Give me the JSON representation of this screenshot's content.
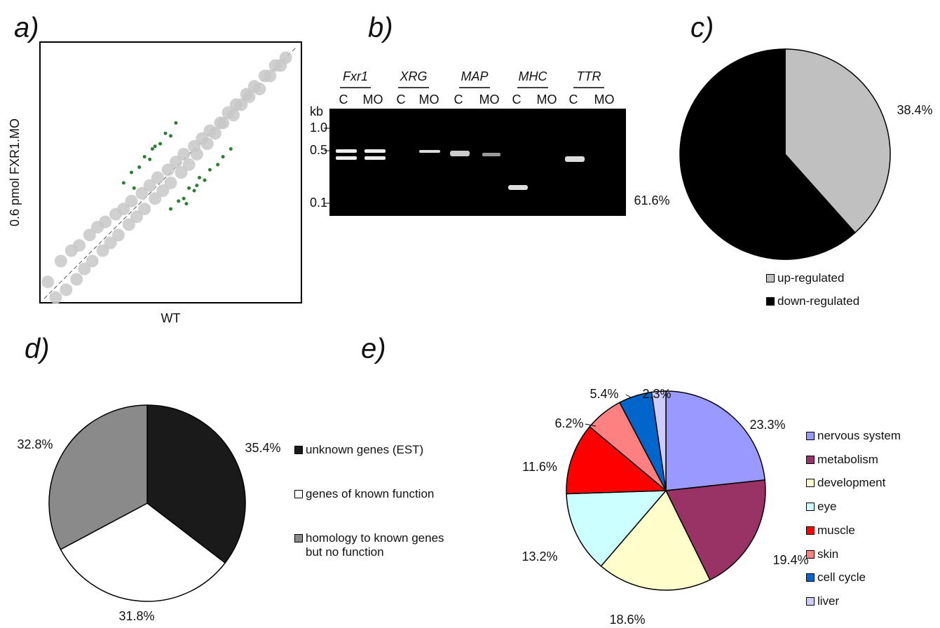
{
  "chart_data": [
    {
      "type": "scatter",
      "panel_label": "a)",
      "x_label": "WT",
      "y_label": "0.6 pmol FXR1.MO",
      "xlim": [
        0,
        10
      ],
      "ylim": [
        0,
        10
      ],
      "series": [
        {
          "color": "#c8c8c8",
          "x": [
            0.3,
            0.6,
            0.8,
            1.0,
            1.2,
            1.4,
            1.5,
            1.7,
            1.9,
            2.0,
            2.2,
            2.4,
            2.5,
            2.7,
            2.9,
            3.0,
            3.2,
            3.4,
            3.5,
            3.7,
            3.9,
            4.0,
            4.2,
            4.4,
            4.5,
            4.7,
            4.9,
            5.0,
            5.2,
            5.4,
            5.5,
            5.7,
            5.9,
            6.0,
            6.2,
            6.4,
            6.5,
            6.7,
            6.9,
            7.0,
            7.2,
            7.4,
            7.5,
            7.7,
            7.9,
            8.0,
            8.2,
            8.4,
            8.6,
            8.8,
            9.0,
            9.2,
            9.4
          ],
          "values": [
            0.8,
            0.2,
            1.6,
            0.5,
            2.0,
            0.9,
            2.2,
            1.3,
            2.6,
            1.6,
            2.9,
            2.0,
            3.1,
            2.3,
            3.4,
            2.6,
            3.6,
            3.0,
            3.9,
            3.3,
            4.2,
            3.6,
            4.5,
            4.0,
            4.8,
            4.3,
            5.1,
            4.6,
            5.4,
            5.0,
            5.7,
            5.3,
            6.0,
            5.7,
            6.3,
            6.1,
            6.6,
            6.5,
            6.9,
            6.9,
            7.3,
            7.2,
            7.6,
            7.6,
            8.0,
            7.9,
            8.3,
            8.2,
            8.7,
            8.7,
            9.1,
            9.1,
            9.4
          ]
        },
        {
          "color": "#2e7d32",
          "x": [
            3.2,
            3.5,
            3.8,
            4.0,
            4.2,
            4.4,
            4.6,
            4.8,
            5.0,
            5.2,
            3.6,
            4.3,
            5.0,
            5.3,
            5.5,
            5.7,
            5.9,
            6.1,
            6.3,
            6.5,
            6.8,
            7.0,
            7.3,
            5.6,
            6.0
          ],
          "values": [
            4.6,
            5.0,
            5.2,
            5.6,
            5.5,
            6.0,
            6.1,
            6.5,
            6.4,
            6.9,
            4.4,
            5.9,
            3.6,
            3.9,
            4.0,
            4.4,
            4.3,
            4.8,
            4.7,
            5.1,
            5.3,
            5.6,
            5.9,
            3.8,
            4.5
          ]
        }
      ]
    },
    {
      "type": "pie",
      "panel_label": "c)",
      "categories": [
        "up-regulated",
        "down-regulated"
      ],
      "values": [
        38.4,
        61.6
      ],
      "value_labels": [
        "38.4%",
        "61.6%"
      ],
      "colors": [
        "#c0c0c0",
        "#000000"
      ]
    },
    {
      "type": "pie",
      "panel_label": "d)",
      "categories": [
        "unknown genes (EST)",
        "genes of known function",
        "homology to known genes but no function"
      ],
      "values": [
        35.4,
        31.8,
        32.8
      ],
      "value_labels": [
        "35.4%",
        "31.8%",
        "32.8%"
      ],
      "colors": [
        "#1a1a1a",
        "#ffffff",
        "#8a8a8a"
      ]
    },
    {
      "type": "pie",
      "panel_label": "e)",
      "categories": [
        "nervous system",
        "metabolism",
        "development",
        "eye",
        "muscle",
        "skin",
        "cell cycle",
        "liver"
      ],
      "values": [
        23.3,
        19.4,
        18.6,
        13.2,
        11.6,
        6.2,
        5.4,
        2.3
      ],
      "value_labels": [
        "23.3%",
        "19.4%",
        "18.6%",
        "13.2%",
        "11.6%",
        "6.2%",
        "5.4%",
        "2.3%"
      ],
      "colors": [
        "#9999ff",
        "#993366",
        "#ffffcc",
        "#ccffff",
        "#ff0000",
        "#ff8080",
        "#0066cc",
        "#ccccff"
      ]
    }
  ],
  "gel": {
    "panel_label": "b)",
    "genes": [
      "Fxr1",
      "XRG",
      "MAP",
      "MHC",
      "TTR"
    ],
    "lanes": [
      "C",
      "MO",
      "C",
      "MO",
      "C",
      "MO",
      "C",
      "MO",
      "C",
      "MO"
    ],
    "size_unit": "kb",
    "sizes": [
      "1.0",
      "0.5",
      "0.1"
    ]
  }
}
